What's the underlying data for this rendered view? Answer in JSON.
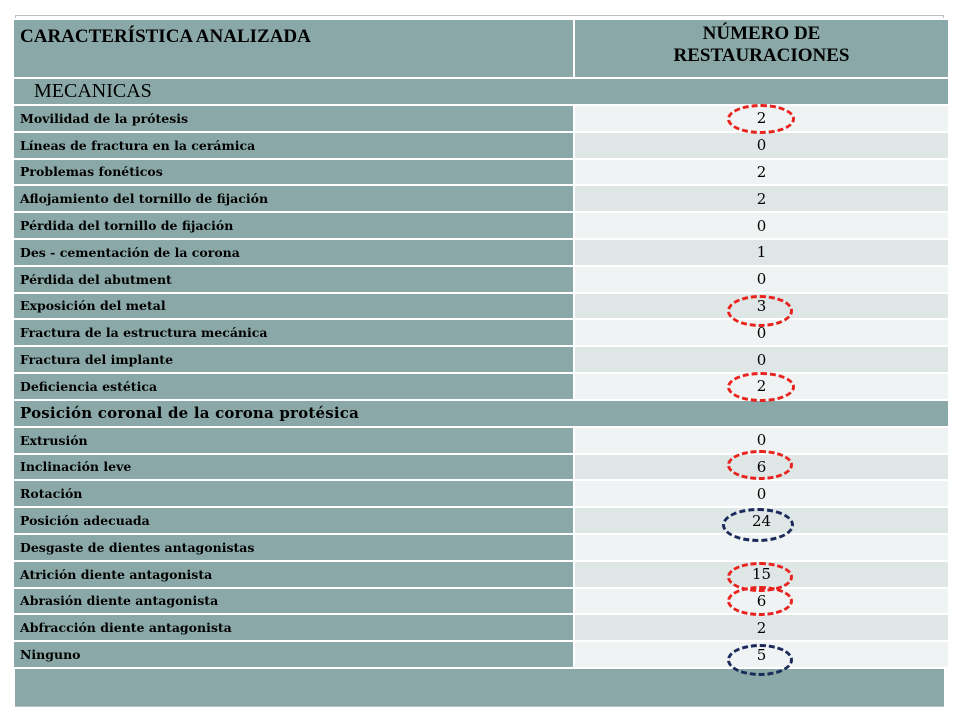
{
  "header": {
    "col1": "CARACTERÍSTICA ANALIZADA",
    "col2_line1": "NÚMERO DE",
    "col2_line2": "RESTAURACIONES"
  },
  "sections": [
    "MECANICAS",
    "Posición coronal de la corona protésica"
  ],
  "rows": [
    {
      "label": "Movilidad de la prótesis",
      "value": "2"
    },
    {
      "label": "Líneas de fractura en la cerámica",
      "value": "0"
    },
    {
      "label": "Problemas fonéticos",
      "value": "2"
    },
    {
      "label": "Aflojamiento del tornillo de fijación",
      "value": "2"
    },
    {
      "label": "Pérdida del tornillo de fijación",
      "value": "0"
    },
    {
      "label": "Des - cementación de la corona",
      "value": "1"
    },
    {
      "label": "Pérdida del abutment",
      "value": "0"
    },
    {
      "label": "Exposición del metal",
      "value": "3"
    },
    {
      "label": "Fractura de la estructura mecánica",
      "value": "0"
    },
    {
      "label": "Fractura del implante",
      "value": "0"
    },
    {
      "label": "Deficiencia estética",
      "value": "2"
    },
    {
      "label": "Extrusión",
      "value": "0"
    },
    {
      "label": "Inclinación leve",
      "value": "6"
    },
    {
      "label": "Rotación",
      "value": "0"
    },
    {
      "label": "Posición adecuada",
      "value": "24"
    },
    {
      "label": "Desgaste de dientes antagonistas",
      "value": ""
    },
    {
      "label": "Atrición diente antagonista",
      "value": "15"
    },
    {
      "label": "Abrasión  diente antagonista",
      "value": "6"
    },
    {
      "label": "Abfracción  diente antagonista",
      "value": "2"
    },
    {
      "label": "Ninguno",
      "value": "5"
    }
  ],
  "highlight_colors": {
    "red": "#e8231e",
    "blue": "#1b2a5a"
  },
  "header_color": "#8aa8a7"
}
